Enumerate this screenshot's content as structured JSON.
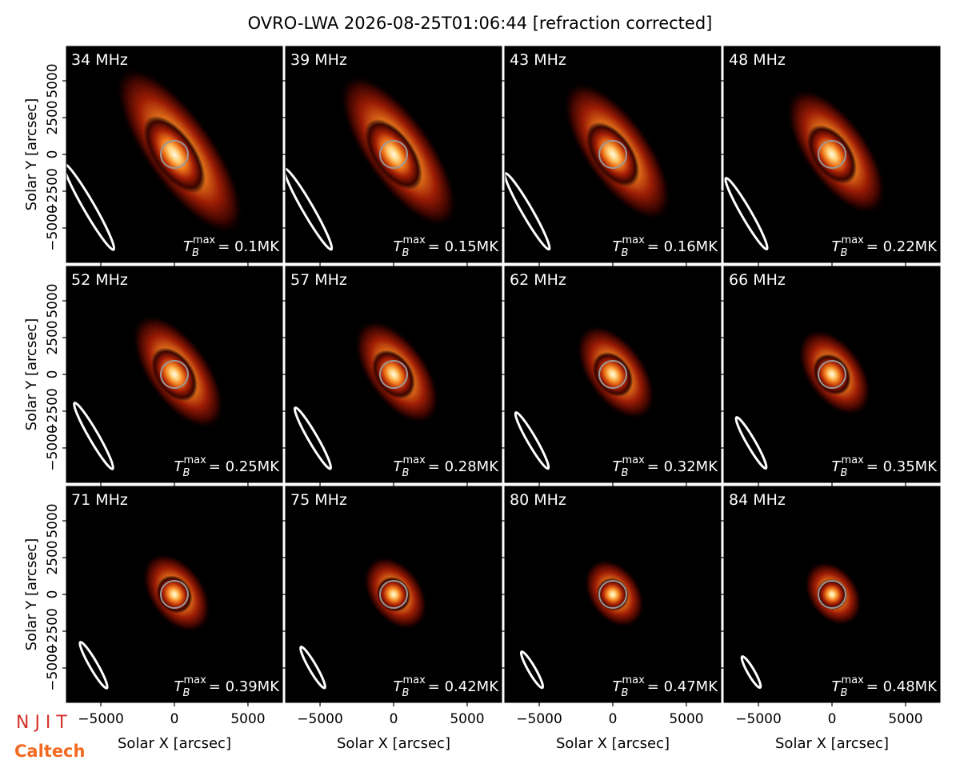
{
  "chart_data": {
    "type": "image-grid",
    "title": "OVRO-LWA 2026-08-25T01:06:44 [refraction corrected]",
    "xlabel": "Solar X [arcsec]",
    "ylabel": "Solar Y [arcsec]",
    "xlim": [
      -7340,
      7340
    ],
    "ylim": [
      -7340,
      7340
    ],
    "xticks": [
      {
        "value": -5000,
        "label": "−5000"
      },
      0,
      5000
    ],
    "yticks": [
      {
        "value": -5000,
        "label": "−5000"
      },
      {
        "value": -2500,
        "label": "−2500"
      },
      0,
      2500,
      5000
    ],
    "tb_symbol": "T",
    "tb_sub": "B",
    "tb_sup": "max",
    "panels": [
      {
        "label": "34 MHz",
        "tb": "= 0.1MK"
      },
      {
        "label": "39 MHz",
        "tb": "= 0.15MK"
      },
      {
        "label": "43 MHz",
        "tb": "= 0.16MK"
      },
      {
        "label": "48 MHz",
        "tb": "= 0.22MK"
      },
      {
        "label": "52 MHz",
        "tb": "= 0.25MK"
      },
      {
        "label": "57 MHz",
        "tb": "= 0.28MK"
      },
      {
        "label": "62 MHz",
        "tb": "= 0.32MK"
      },
      {
        "label": "66 MHz",
        "tb": "= 0.35MK"
      },
      {
        "label": "71 MHz",
        "tb": "= 0.39MK"
      },
      {
        "label": "75 MHz",
        "tb": "= 0.42MK"
      },
      {
        "label": "80 MHz",
        "tb": "= 0.47MK"
      },
      {
        "label": "84 MHz",
        "tb": "= 0.48MK"
      }
    ],
    "logos": [
      "N J I T",
      "Caltech"
    ]
  }
}
